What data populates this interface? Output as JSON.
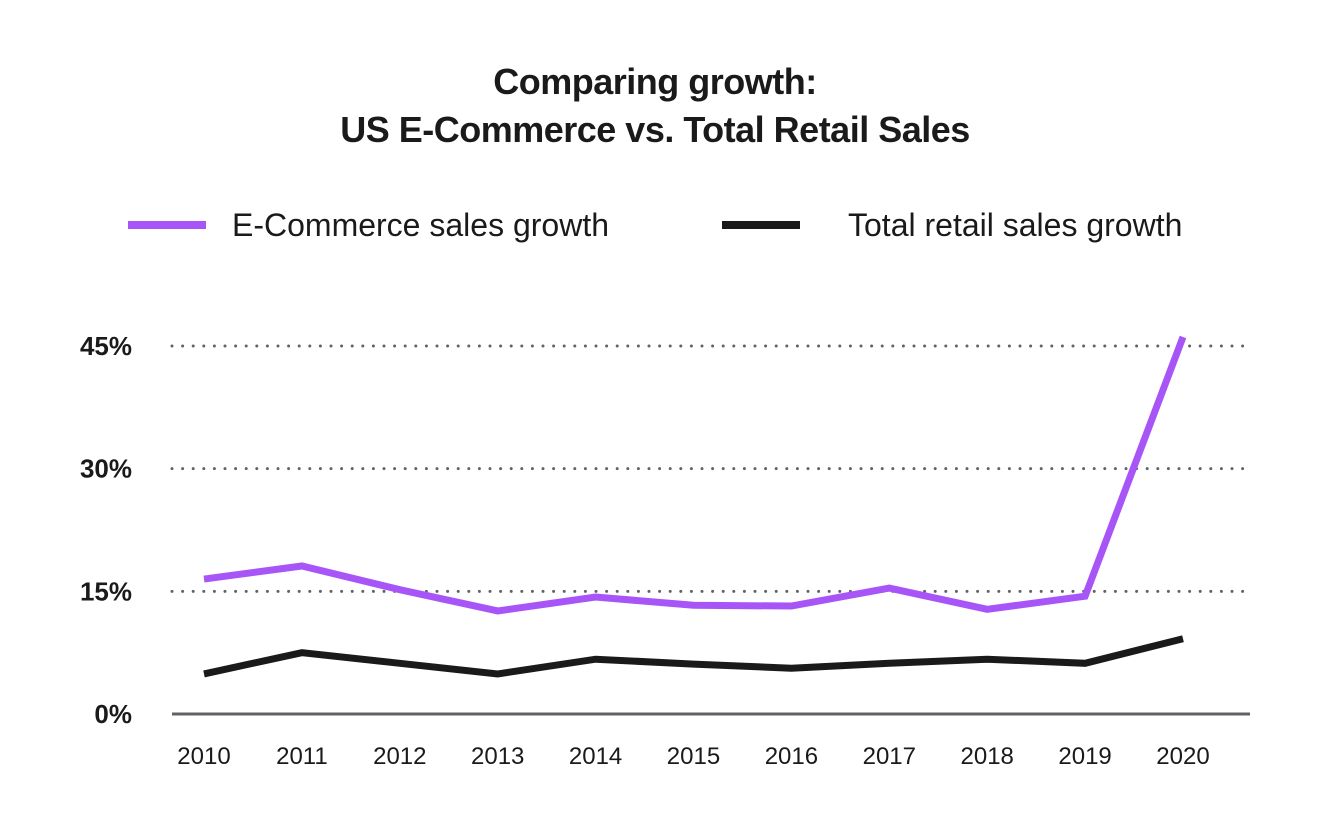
{
  "chart_data": {
    "type": "line",
    "title": "Comparing growth:\nUS E-Commerce vs. Total Retail Sales",
    "title_lines": [
      "Comparing growth:",
      "US E-Commerce vs. Total Retail Sales"
    ],
    "xlabel": "",
    "ylabel": "",
    "x": [
      "2010",
      "2011",
      "2012",
      "2013",
      "2014",
      "2015",
      "2016",
      "2017",
      "2018",
      "2019",
      "2020"
    ],
    "ylim": [
      0,
      45
    ],
    "yticks": [
      0,
      15,
      30,
      45
    ],
    "ytick_labels": [
      "0%",
      "15%",
      "30%",
      "45%"
    ],
    "grid": "horizontal dotted",
    "legend_position": "top",
    "series": [
      {
        "name": "E-Commerce sales growth",
        "color": "#a855f7",
        "values": [
          16.5,
          18.1,
          15.2,
          12.6,
          14.3,
          13.3,
          13.2,
          15.4,
          12.8,
          14.4,
          46.1
        ]
      },
      {
        "name": "Total retail sales growth",
        "color": "#1a1a1a",
        "values": [
          4.9,
          7.5,
          6.2,
          4.9,
          6.7,
          6.1,
          5.6,
          6.2,
          6.7,
          6.2,
          9.2
        ]
      }
    ]
  }
}
